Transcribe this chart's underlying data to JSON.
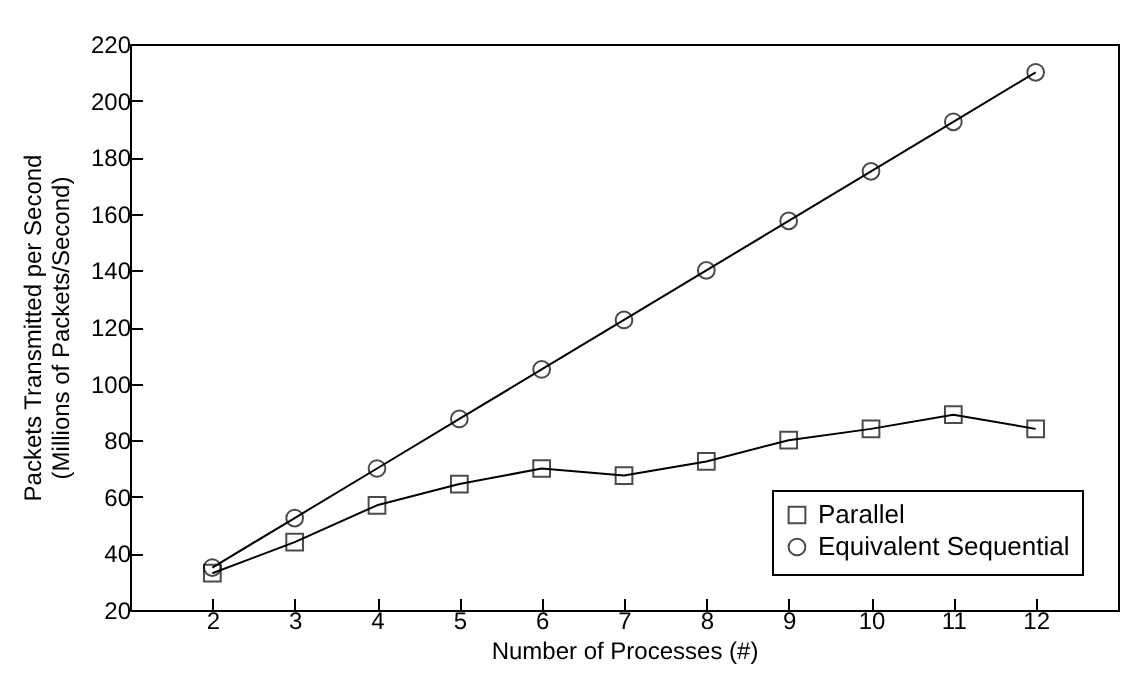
{
  "chart_data": {
    "type": "line",
    "xlabel": "Number of Processes (#)",
    "ylabel": "Packets Transmitted per Second\n(Millions of Packets/Second)",
    "x": [
      2,
      3,
      4,
      5,
      6,
      7,
      8,
      9,
      10,
      11,
      12
    ],
    "series": [
      {
        "name": "Parallel",
        "color": "#000000",
        "marker": "square",
        "values": [
          33,
          44,
          57,
          64.5,
          70,
          67.5,
          72.5,
          80,
          84,
          89,
          84
        ]
      },
      {
        "name": "Equivalent Sequential",
        "color": "#000000",
        "marker": "circle",
        "values": [
          35,
          52.5,
          70,
          87.5,
          105,
          122.5,
          140,
          157.5,
          175,
          192.5,
          210
        ]
      }
    ],
    "xlim": [
      1,
      13
    ],
    "xticks": [
      2,
      3,
      4,
      5,
      6,
      7,
      8,
      9,
      10,
      11,
      12
    ],
    "ylim": [
      20,
      220
    ],
    "yticks": [
      20,
      40,
      60,
      80,
      100,
      120,
      140,
      160,
      180,
      200,
      220
    ],
    "grid": false,
    "legend": "bottom right",
    "line_style": "solid"
  }
}
